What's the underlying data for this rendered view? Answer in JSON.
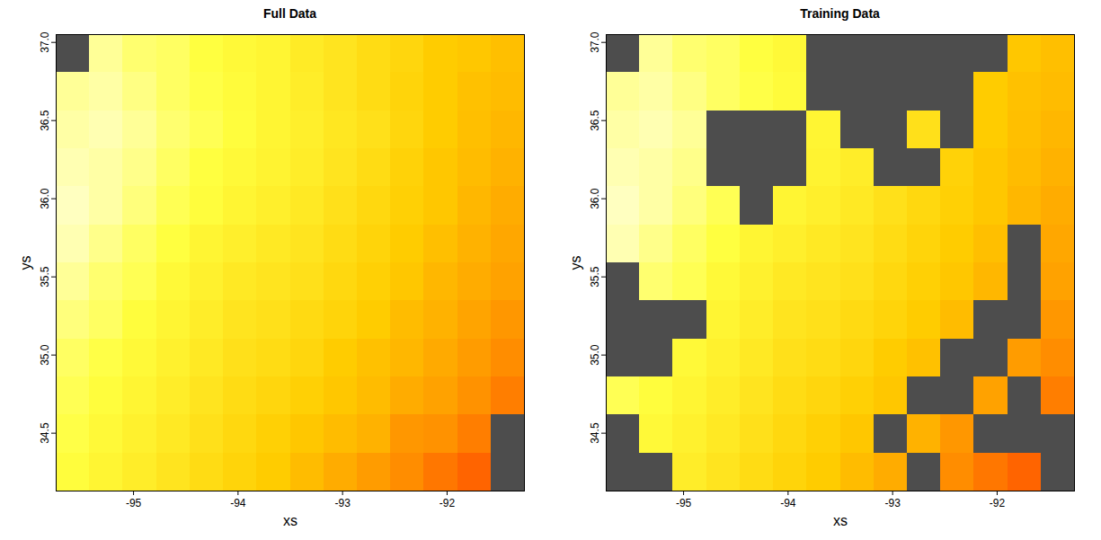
{
  "chart_data": [
    {
      "type": "heatmap",
      "title": "Full Data",
      "x_label": "xs",
      "y_label": "ys",
      "xlim": [
        -95.74,
        -91.26
      ],
      "ylim": [
        34.13,
        37.05
      ],
      "xticks": [
        -95,
        -94,
        -93,
        -92
      ],
      "yticks": [
        {
          "value": 34.5,
          "label": "34.5"
        },
        {
          "value": 35,
          "label": "35.0"
        },
        {
          "value": 35.5,
          "label": "35.5"
        },
        {
          "value": 36,
          "label": "36.0"
        },
        {
          "value": 36.5,
          "label": "36.5"
        },
        {
          "value": 37,
          "label": "37.0"
        }
      ],
      "xbins": [
        -95.74,
        -95.42,
        -95.1,
        -94.78,
        -94.46,
        -94.14,
        -93.82,
        -93.5,
        -93.18,
        -92.86,
        -92.54,
        -92.22,
        -91.9,
        -91.58,
        -91.26
      ],
      "ybins": [
        37.05,
        36.81,
        36.56,
        36.32,
        36.08,
        35.83,
        35.59,
        35.35,
        35.1,
        34.86,
        34.62,
        34.37,
        34.13
      ],
      "zlim": [
        0,
        1
      ],
      "z": [
        [
          null,
          0.12,
          0.18,
          0.2,
          0.25,
          0.28,
          0.3,
          0.35,
          0.38,
          0.42,
          0.45,
          0.5,
          0.52,
          0.55
        ],
        [
          0.12,
          0.1,
          0.15,
          0.2,
          0.24,
          0.27,
          0.3,
          0.34,
          0.38,
          0.42,
          0.46,
          0.5,
          0.54,
          0.56
        ],
        [
          0.1,
          0.08,
          0.12,
          0.18,
          0.22,
          0.26,
          0.3,
          0.33,
          0.37,
          0.4,
          0.45,
          0.5,
          0.55,
          0.58
        ],
        [
          0.08,
          0.1,
          0.14,
          0.2,
          0.25,
          0.28,
          0.31,
          0.34,
          0.38,
          0.42,
          0.47,
          0.52,
          0.56,
          0.6
        ],
        [
          0.06,
          0.1,
          0.16,
          0.22,
          0.26,
          0.3,
          0.33,
          0.36,
          0.4,
          0.44,
          0.48,
          0.52,
          0.58,
          0.62
        ],
        [
          0.08,
          0.14,
          0.2,
          0.25,
          0.3,
          0.33,
          0.36,
          0.38,
          0.42,
          0.46,
          0.5,
          0.55,
          0.6,
          0.64
        ],
        [
          0.12,
          0.18,
          0.22,
          0.28,
          0.32,
          0.36,
          0.38,
          0.4,
          0.44,
          0.48,
          0.52,
          0.58,
          0.62,
          0.66
        ],
        [
          0.16,
          0.2,
          0.26,
          0.3,
          0.34,
          0.38,
          0.4,
          0.43,
          0.46,
          0.5,
          0.56,
          0.6,
          0.65,
          0.7
        ],
        [
          0.2,
          0.24,
          0.28,
          0.32,
          0.36,
          0.4,
          0.42,
          0.45,
          0.5,
          0.54,
          0.58,
          0.63,
          0.68,
          0.74
        ],
        [
          0.22,
          0.26,
          0.3,
          0.34,
          0.38,
          0.42,
          0.45,
          0.48,
          0.52,
          0.56,
          0.62,
          0.66,
          0.72,
          0.78
        ],
        [
          0.24,
          0.28,
          0.32,
          0.36,
          0.4,
          0.44,
          0.48,
          0.52,
          0.56,
          0.6,
          0.7,
          0.72,
          0.78,
          null
        ],
        [
          0.26,
          0.3,
          0.34,
          0.38,
          0.42,
          0.46,
          0.5,
          0.56,
          0.62,
          0.68,
          0.74,
          0.8,
          0.85,
          null
        ]
      ]
    },
    {
      "type": "heatmap",
      "title": "Training Data",
      "x_label": "xs",
      "y_label": "ys",
      "xlim": [
        -95.74,
        -91.26
      ],
      "ylim": [
        34.13,
        37.05
      ],
      "xticks": [
        -95,
        -94,
        -93,
        -92
      ],
      "yticks": [
        {
          "value": 34.5,
          "label": "34.5"
        },
        {
          "value": 35,
          "label": "35.0"
        },
        {
          "value": 35.5,
          "label": "35.5"
        },
        {
          "value": 36,
          "label": "36.0"
        },
        {
          "value": 36.5,
          "label": "36.5"
        },
        {
          "value": 37,
          "label": "37.0"
        }
      ],
      "xbins": [
        -95.74,
        -95.42,
        -95.1,
        -94.78,
        -94.46,
        -94.14,
        -93.82,
        -93.5,
        -93.18,
        -92.86,
        -92.54,
        -92.22,
        -91.9,
        -91.58,
        -91.26
      ],
      "ybins": [
        37.05,
        36.81,
        36.56,
        36.32,
        36.08,
        35.83,
        35.59,
        35.35,
        35.1,
        34.86,
        34.62,
        34.37,
        34.13
      ],
      "zlim": [
        0,
        1
      ],
      "z": [
        [
          null,
          0.12,
          0.18,
          0.2,
          0.25,
          0.28,
          null,
          null,
          null,
          null,
          null,
          null,
          0.52,
          0.55
        ],
        [
          0.12,
          0.1,
          0.15,
          0.2,
          0.24,
          0.27,
          null,
          null,
          null,
          null,
          null,
          0.5,
          0.54,
          0.56
        ],
        [
          0.1,
          0.08,
          0.12,
          null,
          null,
          null,
          0.3,
          null,
          null,
          0.4,
          null,
          0.5,
          0.55,
          0.58
        ],
        [
          0.08,
          0.1,
          0.14,
          null,
          null,
          null,
          0.31,
          0.34,
          null,
          null,
          0.47,
          0.52,
          0.56,
          0.6
        ],
        [
          0.06,
          0.1,
          0.16,
          0.22,
          null,
          0.3,
          0.33,
          0.36,
          0.4,
          0.44,
          0.48,
          0.52,
          0.58,
          0.62
        ],
        [
          0.08,
          0.14,
          0.2,
          0.25,
          0.3,
          0.33,
          0.36,
          0.38,
          0.42,
          0.46,
          0.5,
          0.55,
          null,
          0.64
        ],
        [
          null,
          0.18,
          0.22,
          0.28,
          0.32,
          0.36,
          0.38,
          0.4,
          0.44,
          0.48,
          0.52,
          0.58,
          null,
          0.66
        ],
        [
          null,
          null,
          null,
          0.3,
          0.34,
          0.38,
          0.4,
          0.43,
          0.46,
          0.5,
          0.56,
          null,
          null,
          0.7
        ],
        [
          null,
          null,
          0.28,
          0.32,
          0.36,
          0.4,
          0.42,
          0.45,
          0.5,
          0.54,
          null,
          null,
          0.68,
          0.74
        ],
        [
          0.22,
          0.26,
          0.3,
          0.34,
          0.38,
          0.42,
          0.45,
          0.48,
          0.52,
          null,
          null,
          0.66,
          null,
          0.78
        ],
        [
          null,
          0.28,
          0.32,
          0.36,
          0.4,
          0.44,
          0.48,
          0.52,
          null,
          0.6,
          0.7,
          null,
          null,
          null
        ],
        [
          null,
          null,
          0.34,
          0.38,
          0.42,
          0.46,
          0.5,
          0.56,
          0.62,
          null,
          0.74,
          0.8,
          0.85,
          null
        ]
      ]
    }
  ]
}
